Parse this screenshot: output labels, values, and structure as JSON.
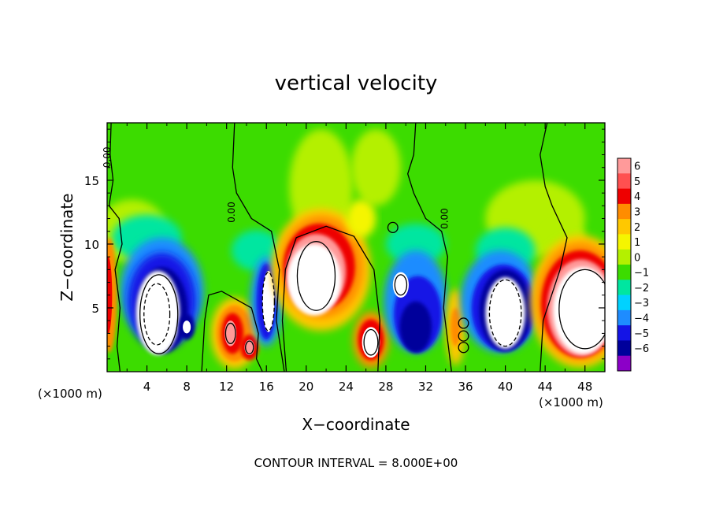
{
  "chart_data": {
    "type": "heatmap",
    "title": "vertical velocity",
    "xlabel": "X−coordinate",
    "ylabel": "Z−coordinate",
    "x_unit_left": "(×1000 m)",
    "x_unit_right": "(×1000 m)",
    "footer": "CONTOUR INTERVAL = 8.000E+00",
    "xlim": [
      0,
      50
    ],
    "ylim": [
      0,
      19.5
    ],
    "x_ticks": [
      4,
      8,
      12,
      16,
      20,
      24,
      28,
      32,
      36,
      40,
      44,
      48
    ],
    "y_ticks": [
      5,
      10,
      15
    ],
    "colorbar": {
      "levels": [
        6,
        5,
        4,
        3,
        2,
        1,
        0,
        -1,
        -2,
        -3,
        -4,
        -5,
        -6
      ],
      "colors": [
        "#ff9a9a",
        "#ff5050",
        "#ee0000",
        "#ff8c00",
        "#ffc800",
        "#f5f500",
        "#b4f000",
        "#3cdc00",
        "#00e6a0",
        "#00d2ff",
        "#1e8cff",
        "#1414e6",
        "#00009b",
        "#8c00c8"
      ]
    },
    "contour_labels": [
      {
        "text": "0.00",
        "x": 0.3,
        "y": 16.8
      },
      {
        "text": "0.00",
        "x": 12.8,
        "y": 12.5
      },
      {
        "text": "0.00",
        "x": 34.2,
        "y": 12.0
      }
    ]
  }
}
